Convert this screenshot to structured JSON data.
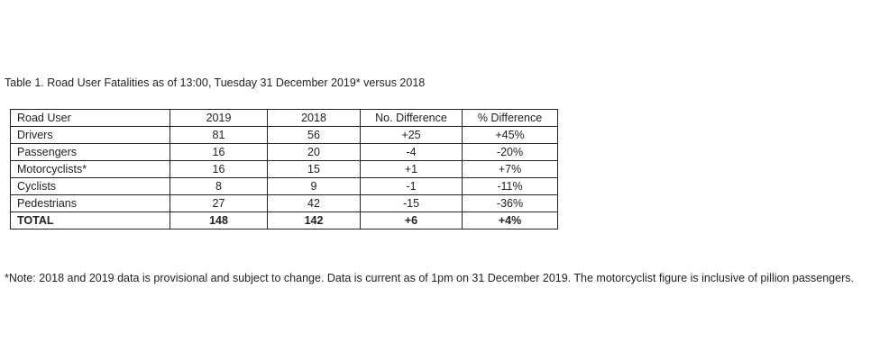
{
  "caption": "Table 1. Road User Fatalities as of 13:00, Tuesday 31 December 2019* versus 2018",
  "table": {
    "headers": [
      "Road User",
      "2019",
      "2018",
      "No. Difference",
      "% Difference"
    ],
    "rows": [
      [
        "Drivers",
        "81",
        "56",
        "+25",
        "+45%"
      ],
      [
        "Passengers",
        "16",
        "20",
        "-4",
        "-20%"
      ],
      [
        "Motorcyclists*",
        "16",
        "15",
        "+1",
        "+7%"
      ],
      [
        "Cyclists",
        "8",
        "9",
        "-1",
        "-11%"
      ],
      [
        "Pedestrians",
        "27",
        "42",
        "-15",
        "-36%"
      ]
    ],
    "total": [
      "TOTAL",
      "148",
      "142",
      "+6",
      "+4%"
    ]
  },
  "note": "*Note: 2018 and 2019 data is provisional and subject to change. Data is current as of 1pm on 31 December 2019. The motorcyclist figure is inclusive of pillion passengers."
}
